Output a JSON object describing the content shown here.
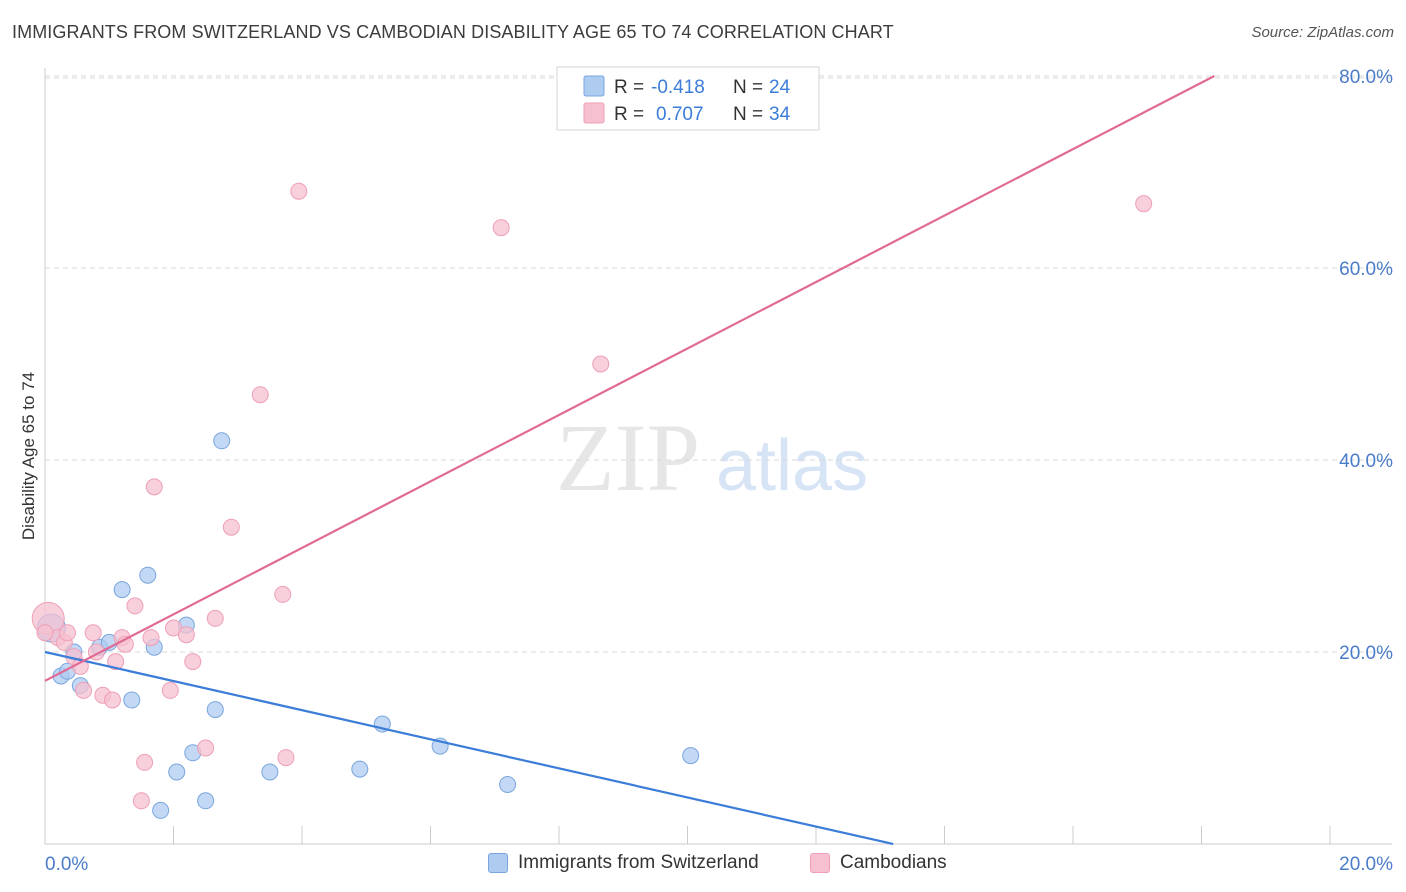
{
  "title": "IMMIGRANTS FROM SWITZERLAND VS CAMBODIAN DISABILITY AGE 65 TO 74 CORRELATION CHART",
  "source": "Source: ZipAtlas.com",
  "watermark": {
    "zip": "ZIP",
    "atlas": "atlas"
  },
  "colors": {
    "blue_fill": "#aecbf0",
    "blue_stroke": "#7aa6df",
    "blue_line": "#3b7dd8",
    "pink_fill": "#f6c0d0",
    "pink_stroke": "#ee9fb6",
    "pink_line": "#e06a93",
    "axis_label": "#4a7cc9",
    "grid": "#d9d9d9"
  },
  "legend_top": [
    {
      "r_label": "R =",
      "r_value": "-0.418",
      "n_label": "N =",
      "n_value": "24",
      "series": "blue"
    },
    {
      "r_label": "R =",
      "r_value": "0.707",
      "n_label": "N =",
      "n_value": "34",
      "series": "pink"
    }
  ],
  "chart_data": {
    "type": "scatter",
    "xlabel": "",
    "ylabel": "Disability Age 65 to 74",
    "xlim": [
      0,
      20
    ],
    "ylim": [
      0,
      80
    ],
    "x_tick_labels": [
      "0.0%",
      "20.0%"
    ],
    "y_tick_values": [
      20,
      40,
      60,
      80
    ],
    "y_tick_labels": [
      "20.0%",
      "40.0%",
      "60.0%",
      "80.0%"
    ],
    "grid": true,
    "legend_position": "top-center",
    "series": [
      {
        "name": "Immigrants from Switzerland",
        "color": "blue",
        "r": -0.418,
        "n": 24,
        "points": [
          [
            0.1,
            22.5
          ],
          [
            0.25,
            17.5
          ],
          [
            0.35,
            18.0
          ],
          [
            0.45,
            20.0
          ],
          [
            0.55,
            16.5
          ],
          [
            0.85,
            20.5
          ],
          [
            1.0,
            21.0
          ],
          [
            1.2,
            26.5
          ],
          [
            1.35,
            15.0
          ],
          [
            1.6,
            28.0
          ],
          [
            1.7,
            20.5
          ],
          [
            1.8,
            3.5
          ],
          [
            2.05,
            7.5
          ],
          [
            2.2,
            22.8
          ],
          [
            2.3,
            9.5
          ],
          [
            2.5,
            4.5
          ],
          [
            2.65,
            14.0
          ],
          [
            2.75,
            42.0
          ],
          [
            3.5,
            7.5
          ],
          [
            4.9,
            7.8
          ],
          [
            5.25,
            12.5
          ],
          [
            6.15,
            10.2
          ],
          [
            7.2,
            6.2
          ],
          [
            10.05,
            9.2
          ]
        ],
        "trend": {
          "x0": 0,
          "y0": 20.0,
          "x1": 13.2,
          "y1": 0.0
        }
      },
      {
        "name": "Cambodians",
        "color": "pink",
        "r": 0.707,
        "n": 34,
        "points": [
          [
            0.05,
            23.5
          ],
          [
            0.2,
            21.5
          ],
          [
            0.3,
            21.0
          ],
          [
            0.35,
            22.0
          ],
          [
            0.45,
            19.5
          ],
          [
            0.55,
            18.5
          ],
          [
            0.6,
            16.0
          ],
          [
            0.75,
            22.0
          ],
          [
            0.8,
            20.0
          ],
          [
            0.9,
            15.5
          ],
          [
            1.05,
            15.0
          ],
          [
            1.1,
            19.0
          ],
          [
            1.2,
            21.5
          ],
          [
            1.25,
            20.8
          ],
          [
            1.4,
            24.8
          ],
          [
            1.5,
            4.5
          ],
          [
            1.55,
            8.5
          ],
          [
            1.65,
            21.5
          ],
          [
            1.7,
            37.2
          ],
          [
            1.95,
            16.0
          ],
          [
            2.0,
            22.5
          ],
          [
            2.2,
            21.8
          ],
          [
            2.3,
            19.0
          ],
          [
            2.5,
            10.0
          ],
          [
            2.65,
            23.5
          ],
          [
            2.9,
            33.0
          ],
          [
            3.35,
            46.8
          ],
          [
            3.7,
            26.0
          ],
          [
            3.75,
            9.0
          ],
          [
            3.95,
            68.0
          ],
          [
            7.1,
            64.2
          ],
          [
            8.65,
            50.0
          ],
          [
            17.1,
            66.7
          ],
          [
            0.0,
            22.0
          ]
        ],
        "trend": {
          "x0": 0,
          "y0": 17.0,
          "x1": 18.2,
          "y1": 80.0
        }
      }
    ]
  }
}
